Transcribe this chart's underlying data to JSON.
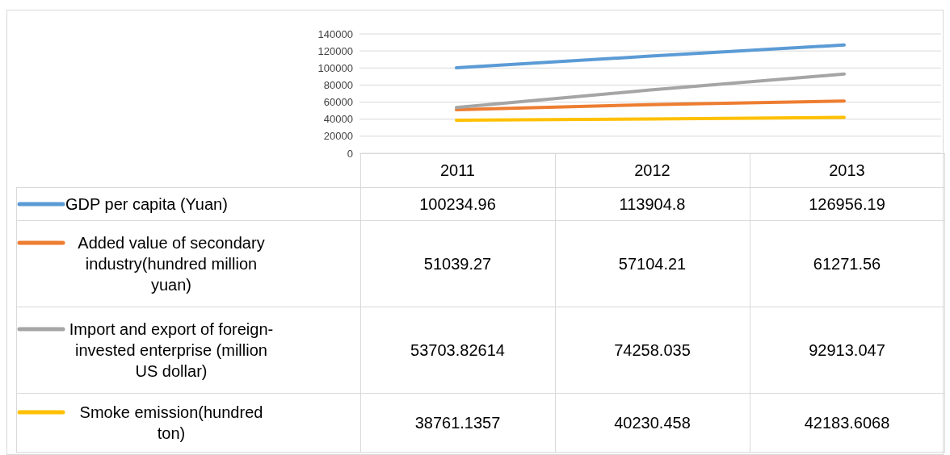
{
  "chart_data": {
    "type": "line",
    "categories": [
      "2011",
      "2012",
      "2013"
    ],
    "series": [
      {
        "name": "GDP per capita (Yuan)",
        "color": "#5b9bd5",
        "values": [
          100234.96,
          113904.8,
          126956.19
        ]
      },
      {
        "name": "Added value of secondary industry(hundred million yuan)",
        "color": "#ed7d31",
        "values": [
          51039.27,
          57104.21,
          61271.56
        ]
      },
      {
        "name": "Import and export of foreign-invested enterprise (million US dollar)",
        "color": "#a5a5a5",
        "values": [
          53703.82614,
          74258.035,
          92913.047
        ]
      },
      {
        "name": "Smoke emission(hundred ton)",
        "color": "#ffc000",
        "values": [
          38761.1357,
          40230.458,
          42183.6068
        ]
      }
    ],
    "ylim": [
      0,
      140000
    ],
    "yticks": [
      0,
      20000,
      40000,
      60000,
      80000,
      100000,
      120000,
      140000
    ],
    "grid": "y",
    "legend": "bottom",
    "data_labels": true,
    "marker": "none",
    "line_style": "solid"
  }
}
